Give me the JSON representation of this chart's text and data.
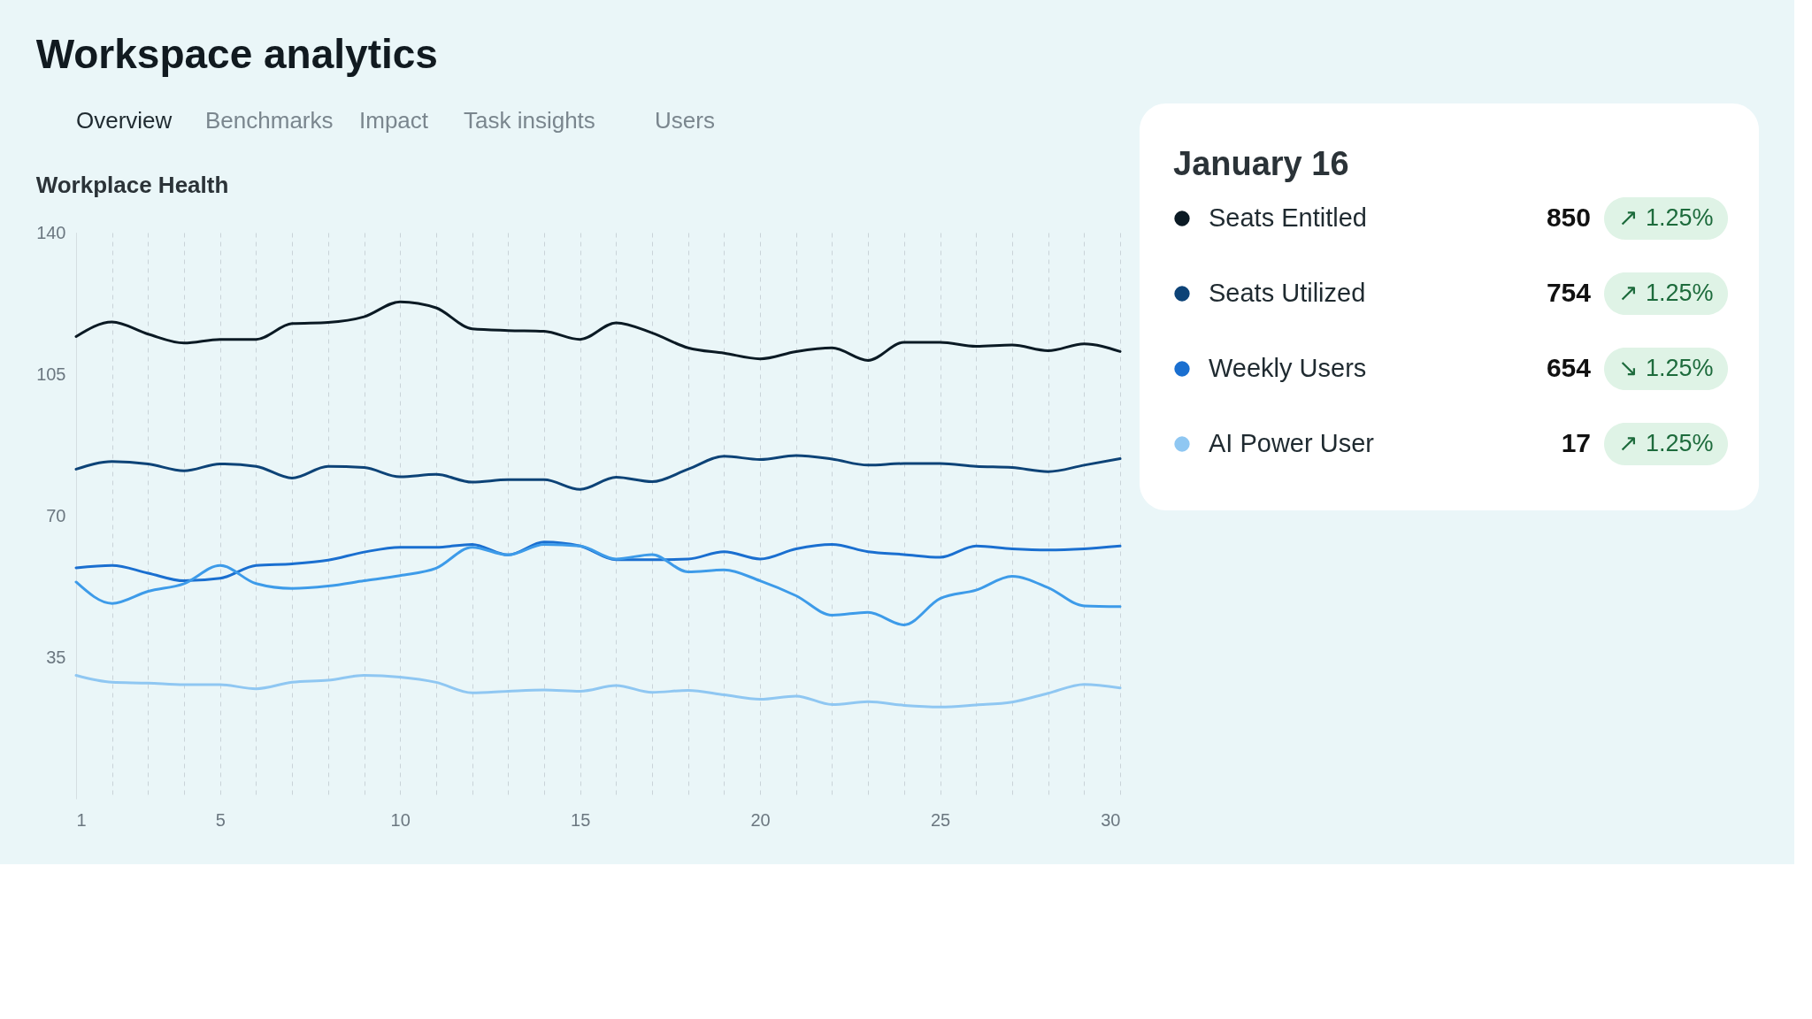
{
  "chart_data": {
    "type": "line",
    "title": "Workspace analytics",
    "subtitle": "Workplace Health",
    "annotations": [
      "January 16",
      "850",
      "↗ 1.25%",
      "754",
      "↗ 1.25%",
      "654",
      "↘ 1.25%",
      "17",
      "↗ 1.25%",
      "Overview",
      "Benchmarks",
      "Impact",
      "Task insights",
      "Users"
    ],
    "x": [
      1,
      2,
      3,
      4,
      5,
      6,
      7,
      8,
      9,
      10,
      11,
      12,
      13,
      14,
      15,
      16,
      17,
      18,
      19,
      20,
      21,
      22,
      23,
      24,
      25,
      26,
      27,
      28,
      29,
      30
    ],
    "series": [
      {
        "name": "Seats Entitled",
        "color": "#0b1a24",
        "values": [
          114.3,
          117.9,
          114.9,
          112.7,
          113.6,
          113.6,
          117.5,
          117.8,
          119.2,
          122.9,
          121.4,
          116.2,
          115.8,
          115.6,
          113.6,
          117.7,
          115.2,
          111.5,
          110.2,
          108.8,
          110.6,
          111.5,
          108.4,
          112.9,
          112.9,
          111.9,
          112.2,
          110.8,
          112.5,
          110.6
        ]
      },
      {
        "name": "Seats Utilized",
        "color": "#0d4377",
        "values": [
          81.5,
          83.4,
          82.8,
          81.1,
          82.8,
          82.2,
          79.3,
          82.2,
          81.9,
          79.6,
          80.2,
          78.3,
          78.9,
          78.9,
          76.5,
          79.5,
          78.4,
          81.5,
          84.7,
          83.9,
          84.9,
          84.0,
          82.5,
          82.9,
          82.9,
          82.2,
          81.9,
          80.9,
          82.5,
          84.1
        ]
      },
      {
        "name": "Weekly Users",
        "color": "#1a6fd0",
        "values": [
          57.1,
          57.7,
          55.8,
          53.9,
          54.5,
          57.7,
          58.1,
          59.0,
          61.0,
          62.2,
          62.2,
          62.9,
          60.3,
          63.5,
          62.5,
          59.1,
          59.1,
          59.3,
          61.1,
          59.3,
          61.8,
          62.9,
          61.1,
          60.4,
          59.7,
          62.5,
          61.8,
          61.5,
          61.8,
          62.5
        ]
      },
      {
        "color": "#3d9be9",
        "values": [
          53.6,
          48.3,
          51.3,
          53.2,
          57.7,
          53.2,
          52.0,
          52.6,
          53.9,
          55.2,
          57.0,
          62.2,
          60.3,
          62.9,
          62.5,
          59.3,
          60.4,
          56.1,
          56.6,
          53.9,
          50.2,
          45.4,
          46.1,
          43.0,
          49.5,
          51.6,
          55.0,
          52.2,
          47.7,
          47.5
        ]
      },
      {
        "name": "AI Power User",
        "color": "#8fc7f2",
        "values": [
          30.5,
          28.8,
          28.6,
          28.2,
          28.2,
          27.2,
          28.8,
          29.3,
          30.5,
          30.1,
          28.8,
          26.2,
          26.6,
          26.9,
          26.6,
          28.0,
          26.3,
          26.8,
          25.7,
          24.6,
          25.4,
          23.3,
          24.0,
          23.1,
          22.7,
          23.2,
          23.9,
          26.1,
          28.3,
          27.4
        ]
      }
    ],
    "xlim": [
      1,
      30
    ],
    "xticks": [
      1,
      {
        "value": 2,
        "label": null
      },
      {
        "value": 3,
        "label": null
      },
      {
        "value": 4,
        "label": null
      },
      5,
      {
        "value": 6,
        "label": null
      },
      {
        "value": 7,
        "label": null
      },
      {
        "value": 8,
        "label": null
      },
      {
        "value": 9,
        "label": null
      },
      10,
      {
        "value": 11,
        "label": null
      },
      {
        "value": 12,
        "label": null
      },
      {
        "value": 13,
        "label": null
      },
      {
        "value": 14,
        "label": null
      },
      15,
      {
        "value": 16,
        "label": null
      },
      {
        "value": 17,
        "label": null
      },
      {
        "value": 18,
        "label": null
      },
      {
        "value": 19,
        "label": null
      },
      20,
      {
        "value": 21,
        "label": null
      },
      {
        "value": 22,
        "label": null
      },
      {
        "value": 23,
        "label": null
      },
      {
        "value": 24,
        "label": null
      },
      25,
      {
        "value": 26,
        "label": null
      },
      {
        "value": 27,
        "label": null
      },
      {
        "value": 28,
        "label": null
      },
      {
        "value": 29,
        "label": null
      },
      30
    ],
    "ylim": [
      0,
      140
    ],
    "yticks": [
      35,
      70,
      105,
      140
    ],
    "grid": "x",
    "legend": "top right"
  }
}
